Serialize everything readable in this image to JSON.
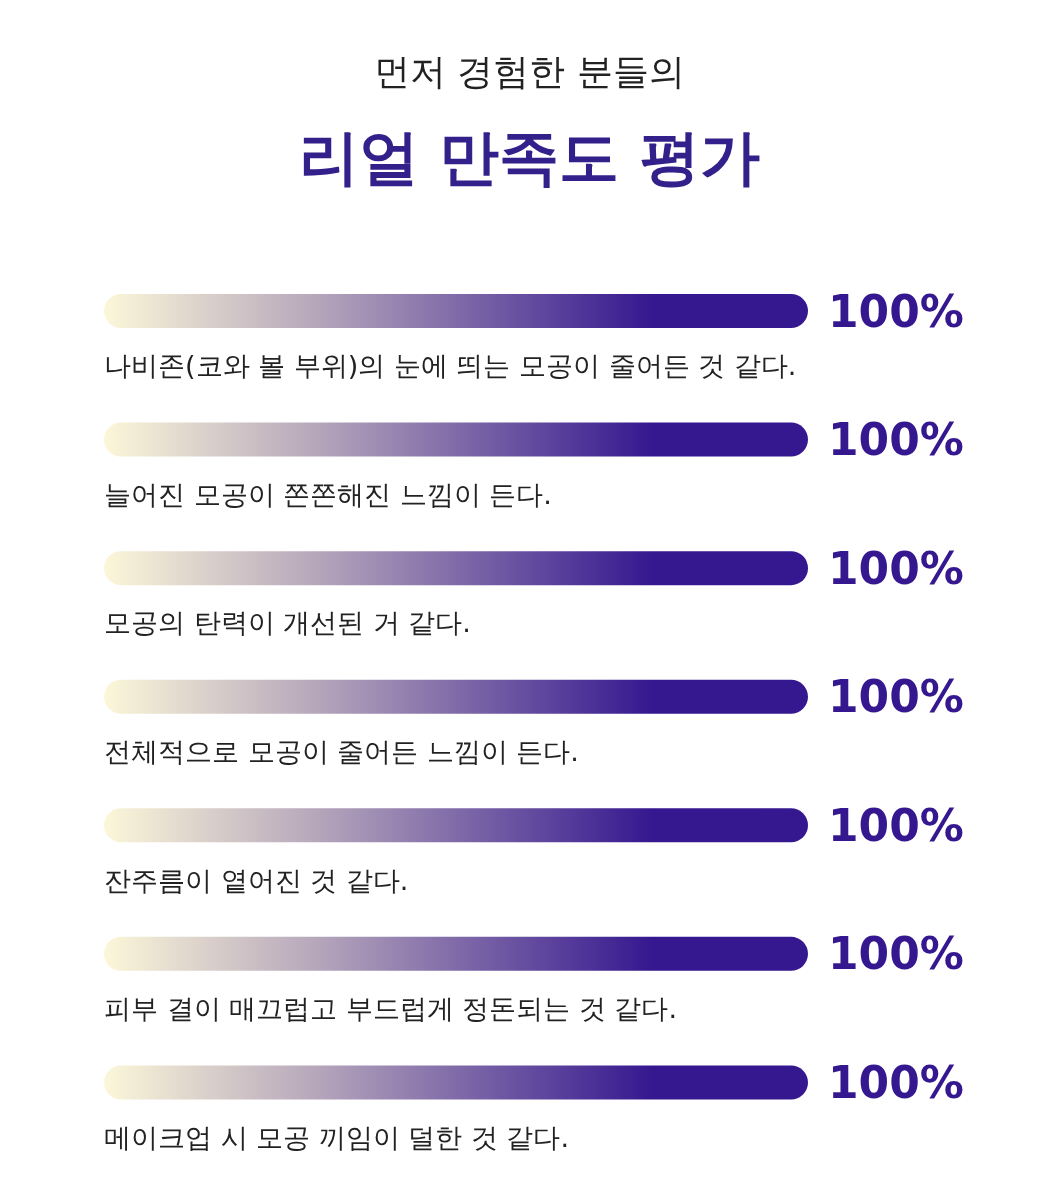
{
  "chart_data": {
    "type": "bar",
    "orientation": "horizontal",
    "subtitle": "먼저 경험한 분들의",
    "title": "리얼 만족도 평가",
    "categories": [
      "나비존(코와 볼 부위)의 눈에 띄는 모공이 줄어든 것 같다.",
      "늘어진 모공이 쫀쫀해진 느낌이 든다.",
      "모공의 탄력이 개선된 거 같다.",
      "전체적으로 모공이 줄어든 느낌이 든다.",
      "잔주름이 옅어진 것 같다.",
      "피부 결이 매끄럽고 부드럽게 정돈되는 것 같다.",
      "메이크업 시 모공 끼임이 덜한 것 같다."
    ],
    "values": [
      100,
      100,
      100,
      100,
      100,
      100,
      100
    ],
    "value_labels": [
      "100%",
      "100%",
      "100%",
      "100%",
      "100%",
      "100%",
      "100%"
    ],
    "color": "#35178f",
    "tick_labels": "y"
  }
}
